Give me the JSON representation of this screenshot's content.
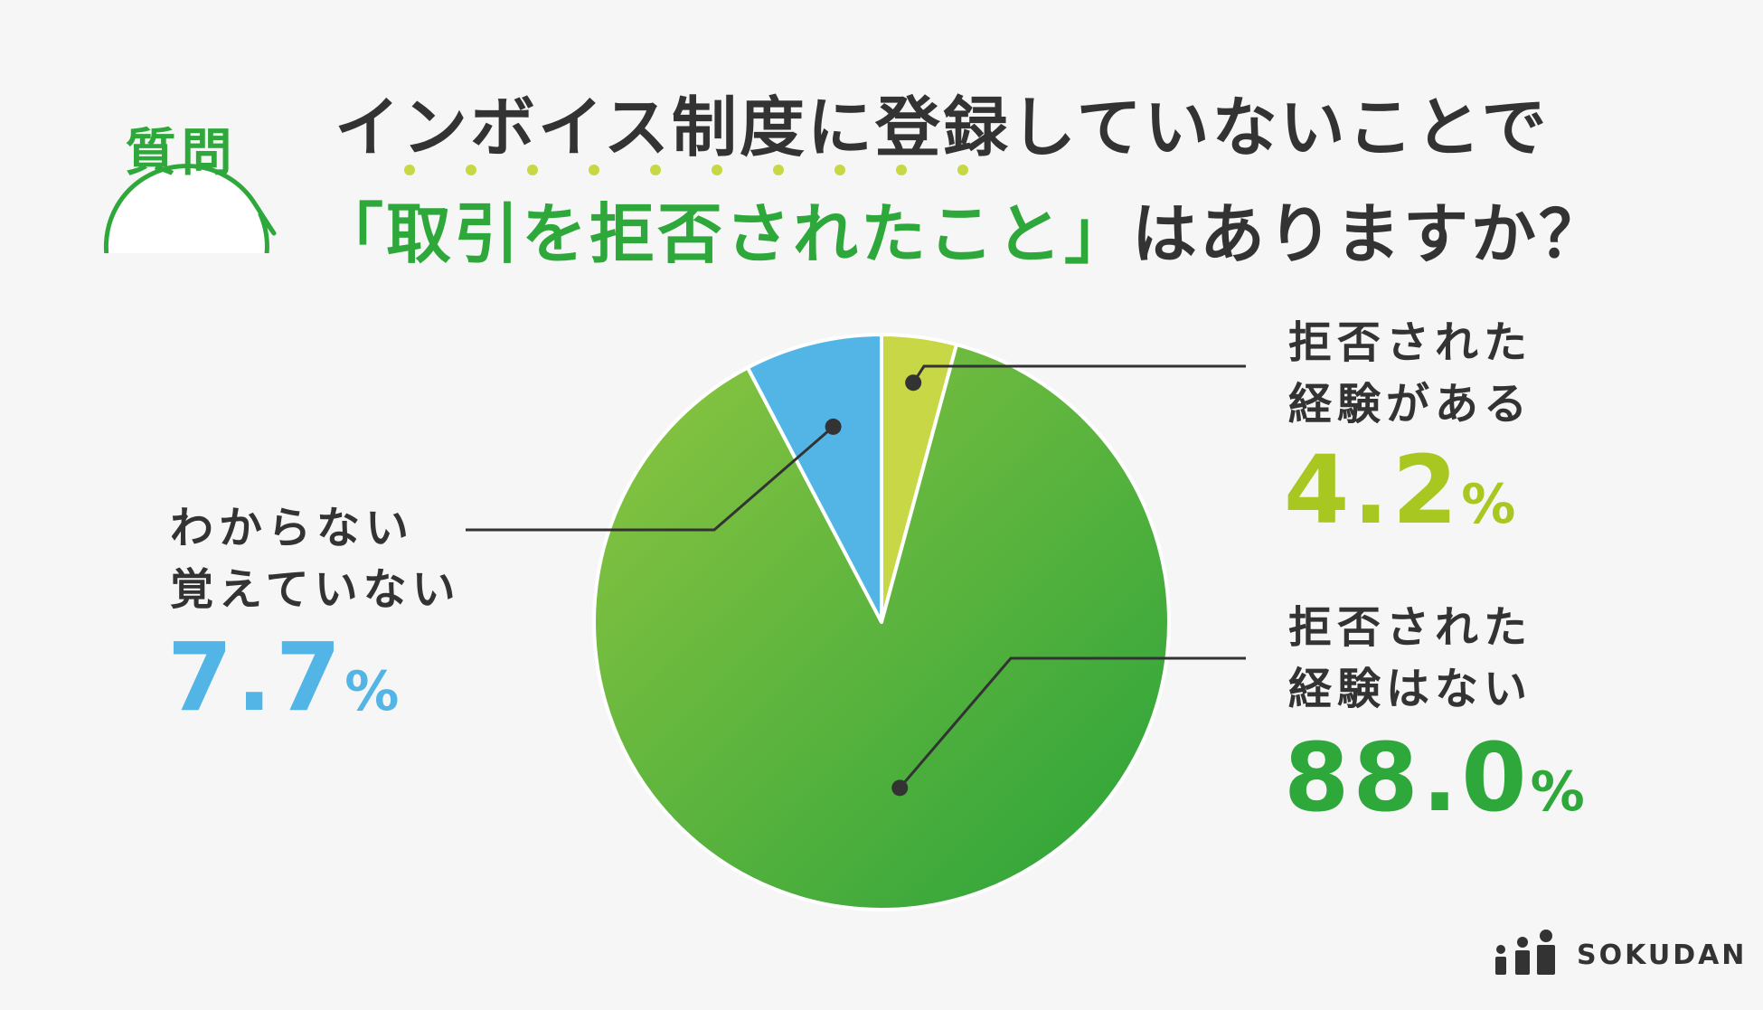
{
  "question_badge": "質問",
  "title": {
    "line1": "インボイス制度に登録していないことで",
    "line2_open_bracket": "「",
    "line2_highlight": "取引を拒否されたこと",
    "line2_close_bracket": "」",
    "line2_rest": "はありますか？"
  },
  "colors": {
    "accent_green": "#2ea83a",
    "dark_text": "#333333",
    "yellow_green": "#a8c721",
    "blue": "#53b5e6",
    "background": "#f6f6f6"
  },
  "chart_data": {
    "type": "pie",
    "slices": [
      {
        "label_line1": "拒否された",
        "label_line2": "経験がある",
        "value": 4.2,
        "value_text": "4.2",
        "unit": "%",
        "color": "#c7d745",
        "text_color": "#a8c721"
      },
      {
        "label_line1": "拒否された",
        "label_line2": "経験はない",
        "value": 88.0,
        "value_text": "88.0",
        "unit": "%",
        "color": "#2ea83a",
        "text_color": "#2ea83a"
      },
      {
        "label_line1": "わからない",
        "label_line2": "覚えていない",
        "value": 7.7,
        "value_text": "7.7",
        "unit": "%",
        "color": "#53b5e6",
        "text_color": "#53b5e6"
      }
    ],
    "start_angle": "12 o'clock",
    "direction": "clockwise",
    "legend": "none (callout labels)"
  },
  "logo": {
    "text": "SOKUDAN"
  }
}
